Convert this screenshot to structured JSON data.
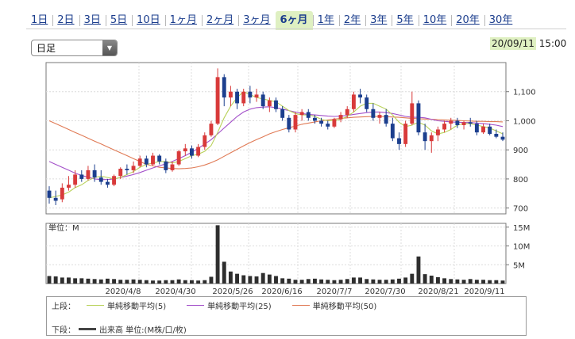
{
  "tabs": [
    {
      "label": "1日",
      "active": false
    },
    {
      "label": "2日",
      "active": false
    },
    {
      "label": "3日",
      "active": false
    },
    {
      "label": "5日",
      "active": false
    },
    {
      "label": "10日",
      "active": false
    },
    {
      "label": "1ヶ月",
      "active": false
    },
    {
      "label": "2ヶ月",
      "active": false
    },
    {
      "label": "3ヶ月",
      "active": false
    },
    {
      "label": "6ヶ月",
      "active": true
    },
    {
      "label": "1年",
      "active": false
    },
    {
      "label": "2年",
      "active": false
    },
    {
      "label": "3年",
      "active": false
    },
    {
      "label": "5年",
      "active": false
    },
    {
      "label": "10年",
      "active": false
    },
    {
      "label": "20年",
      "active": false
    },
    {
      "label": "30年",
      "active": false
    }
  ],
  "period_select": {
    "value": "日足"
  },
  "timestamp": {
    "date": "20/09/11",
    "time": "15:00"
  },
  "colors": {
    "up": "#d83a3a",
    "down": "#1c3f8e",
    "ma5": "#b9d25a",
    "ma25": "#a34fc9",
    "ma50": "#e07a55",
    "volume": "#2e2e2e",
    "accent": "#dff0c2"
  },
  "legend": {
    "upper_label": "上段：",
    "lower_label": "下段：",
    "ma5": "単純移動平均(5)",
    "ma25": "単純移動平均(25)",
    "ma50": "単純移動平均(50)",
    "volume": "出来高 単位:(M株/口/枚)"
  },
  "chart_data": {
    "type": "candlestick",
    "price_axis": {
      "ylim": [
        680,
        1200
      ],
      "ticks": [
        700,
        800,
        900,
        "1,000",
        "1,100"
      ]
    },
    "volume_axis": {
      "unit_label": "単位：M",
      "ylim": [
        0,
        16
      ],
      "ticks": [
        "5M",
        "10M",
        "15M"
      ]
    },
    "x_tick_labels": [
      "2020/4/8",
      "2020/4/30",
      "2020/5/26",
      "2020/6/16",
      "2020/7/7",
      "2020/7/30",
      "2020/8/21",
      "2020/9/11"
    ],
    "ohlc": [
      [
        760,
        775,
        715,
        735
      ],
      [
        735,
        760,
        710,
        725
      ],
      [
        730,
        785,
        720,
        770
      ],
      [
        770,
        810,
        760,
        780
      ],
      [
        780,
        830,
        770,
        815
      ],
      [
        815,
        830,
        790,
        800
      ],
      [
        800,
        845,
        795,
        830
      ],
      [
        830,
        850,
        790,
        805
      ],
      [
        805,
        830,
        780,
        790
      ],
      [
        790,
        800,
        770,
        780
      ],
      [
        780,
        815,
        775,
        810
      ],
      [
        810,
        840,
        800,
        835
      ],
      [
        835,
        850,
        815,
        830
      ],
      [
        830,
        860,
        820,
        845
      ],
      [
        845,
        880,
        840,
        870
      ],
      [
        870,
        880,
        840,
        850
      ],
      [
        850,
        890,
        845,
        880
      ],
      [
        880,
        885,
        850,
        860
      ],
      [
        860,
        870,
        820,
        830
      ],
      [
        830,
        860,
        825,
        850
      ],
      [
        850,
        900,
        845,
        895
      ],
      [
        895,
        920,
        880,
        905
      ],
      [
        905,
        915,
        870,
        880
      ],
      [
        880,
        920,
        875,
        910
      ],
      [
        910,
        960,
        900,
        950
      ],
      [
        950,
        1000,
        945,
        990
      ],
      [
        990,
        1180,
        985,
        1150
      ],
      [
        1150,
        1160,
        1050,
        1080
      ],
      [
        1080,
        1120,
        1050,
        1100
      ],
      [
        1100,
        1110,
        1040,
        1060
      ],
      [
        1060,
        1110,
        1050,
        1100
      ],
      [
        1100,
        1120,
        1060,
        1080
      ],
      [
        1080,
        1110,
        1065,
        1090
      ],
      [
        1090,
        1100,
        1040,
        1050
      ],
      [
        1050,
        1080,
        1030,
        1070
      ],
      [
        1070,
        1080,
        1030,
        1040
      ],
      [
        1040,
        1050,
        1000,
        1010
      ],
      [
        1010,
        1020,
        960,
        970
      ],
      [
        970,
        1030,
        960,
        1020
      ],
      [
        1020,
        1040,
        1000,
        1030
      ],
      [
        1030,
        1040,
        1000,
        1010
      ],
      [
        1010,
        1020,
        990,
        1000
      ],
      [
        1000,
        1010,
        980,
        990
      ],
      [
        990,
        1000,
        970,
        980
      ],
      [
        980,
        1010,
        975,
        1005
      ],
      [
        1005,
        1030,
        995,
        1020
      ],
      [
        1020,
        1050,
        1010,
        1040
      ],
      [
        1040,
        1100,
        1030,
        1090
      ],
      [
        1090,
        1110,
        1060,
        1080
      ],
      [
        1080,
        1090,
        1030,
        1040
      ],
      [
        1040,
        1060,
        1000,
        1010
      ],
      [
        1010,
        1030,
        990,
        1020
      ],
      [
        1020,
        1040,
        980,
        990
      ],
      [
        990,
        1010,
        930,
        940
      ],
      [
        940,
        960,
        900,
        920
      ],
      [
        920,
        1000,
        910,
        990
      ],
      [
        990,
        1100,
        985,
        1060
      ],
      [
        1060,
        1070,
        950,
        960
      ],
      [
        960,
        990,
        900,
        930
      ],
      [
        930,
        960,
        890,
        950
      ],
      [
        950,
        980,
        930,
        970
      ],
      [
        970,
        1000,
        960,
        990
      ],
      [
        990,
        1010,
        970,
        1000
      ],
      [
        1000,
        1010,
        975,
        985
      ],
      [
        985,
        1000,
        970,
        995
      ],
      [
        995,
        1010,
        980,
        990
      ],
      [
        990,
        1000,
        950,
        960
      ],
      [
        960,
        990,
        955,
        980
      ],
      [
        980,
        990,
        950,
        955
      ],
      [
        955,
        970,
        940,
        945
      ],
      [
        945,
        960,
        930,
        935
      ]
    ],
    "ma5": [
      735,
      740,
      745,
      755,
      770,
      780,
      795,
      805,
      810,
      805,
      800,
      805,
      815,
      825,
      840,
      850,
      855,
      860,
      860,
      855,
      860,
      870,
      880,
      885,
      895,
      915,
      960,
      1010,
      1050,
      1080,
      1100,
      1090,
      1080,
      1075,
      1070,
      1065,
      1050,
      1035,
      1025,
      1020,
      1020,
      1015,
      1005,
      1000,
      1000,
      1005,
      1015,
      1030,
      1050,
      1060,
      1060,
      1050,
      1040,
      1020,
      995,
      980,
      985,
      995,
      985,
      965,
      955,
      960,
      970,
      985,
      990,
      990,
      985,
      980,
      975,
      965,
      955
    ],
    "ma25": [
      860,
      850,
      840,
      830,
      820,
      812,
      806,
      800,
      798,
      798,
      800,
      805,
      810,
      815,
      822,
      830,
      838,
      845,
      852,
      860,
      870,
      880,
      892,
      905,
      920,
      935,
      955,
      975,
      995,
      1015,
      1030,
      1040,
      1045,
      1047,
      1048,
      1045,
      1040,
      1035,
      1030,
      1025,
      1022,
      1020,
      1018,
      1016,
      1015,
      1016,
      1018,
      1022,
      1025,
      1028,
      1030,
      1030,
      1028,
      1025,
      1020,
      1015,
      1012,
      1012,
      1010,
      1005,
      1000,
      998,
      996,
      995,
      994,
      994,
      992,
      990,
      988,
      985,
      980
    ],
    "ma50": [
      1000,
      990,
      980,
      970,
      960,
      950,
      940,
      930,
      920,
      910,
      900,
      890,
      880,
      870,
      860,
      850,
      845,
      840,
      838,
      836,
      835,
      836,
      838,
      842,
      848,
      856,
      866,
      878,
      890,
      902,
      914,
      925,
      935,
      945,
      955,
      963,
      970,
      976,
      982,
      988,
      992,
      996,
      1000,
      1003,
      1006,
      1008,
      1010,
      1012,
      1013,
      1014,
      1015,
      1015,
      1014,
      1013,
      1012,
      1010,
      1008,
      1007,
      1006,
      1005,
      1004,
      1003,
      1002,
      1001,
      1000,
      999,
      998,
      998,
      997,
      997,
      996
    ],
    "volume": [
      2.0,
      1.9,
      1.6,
      1.6,
      1.4,
      1.4,
      1.3,
      1.2,
      1.1,
      1.3,
      1.2,
      1.0,
      1.0,
      1.1,
      1.0,
      0.9,
      0.8,
      0.8,
      0.9,
      0.9,
      1.1,
      0.9,
      0.9,
      0.8,
      0.9,
      1.8,
      15.5,
      5.8,
      3.2,
      2.6,
      2.2,
      2.0,
      1.9,
      2.8,
      2.4,
      2.0,
      1.4,
      1.3,
      1.0,
      1.0,
      1.2,
      1.3,
      1.1,
      1.0,
      0.9,
      1.0,
      1.2,
      1.6,
      1.6,
      1.2,
      1.1,
      1.0,
      1.0,
      1.1,
      1.3,
      1.6,
      2.6,
      7.2,
      2.5,
      2.1,
      1.7,
      1.4,
      1.2,
      1.1,
      1.0,
      1.2,
      1.0,
      1.0,
      0.9,
      0.9,
      0.8
    ]
  }
}
